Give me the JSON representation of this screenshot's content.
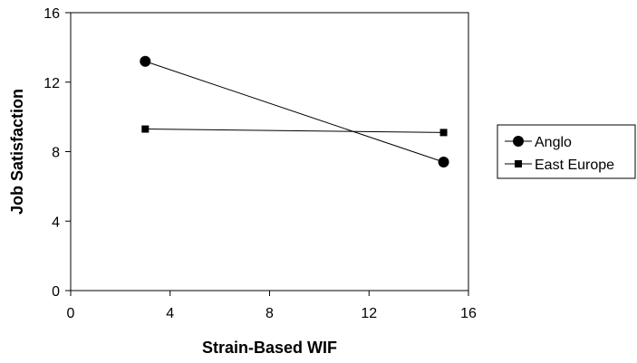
{
  "chart_data": {
    "type": "line",
    "title": "",
    "xlabel": "Strain-Based WIF",
    "ylabel": "Job Satisfaction",
    "xlim": [
      0,
      16
    ],
    "ylim": [
      0,
      16
    ],
    "x_ticks": [
      "0",
      "4",
      "8",
      "12",
      "16"
    ],
    "y_ticks": [
      "0",
      "4",
      "8",
      "12",
      "16"
    ],
    "grid": false,
    "legend_position": "right",
    "series": [
      {
        "name": "Anglo",
        "marker": "circle",
        "color": "#000000",
        "points": [
          {
            "x": 3,
            "y": 13.2
          },
          {
            "x": 15,
            "y": 7.4
          }
        ]
      },
      {
        "name": "East Europe",
        "marker": "square",
        "color": "#000000",
        "points": [
          {
            "x": 3,
            "y": 9.3
          },
          {
            "x": 15,
            "y": 9.1
          }
        ]
      }
    ]
  }
}
